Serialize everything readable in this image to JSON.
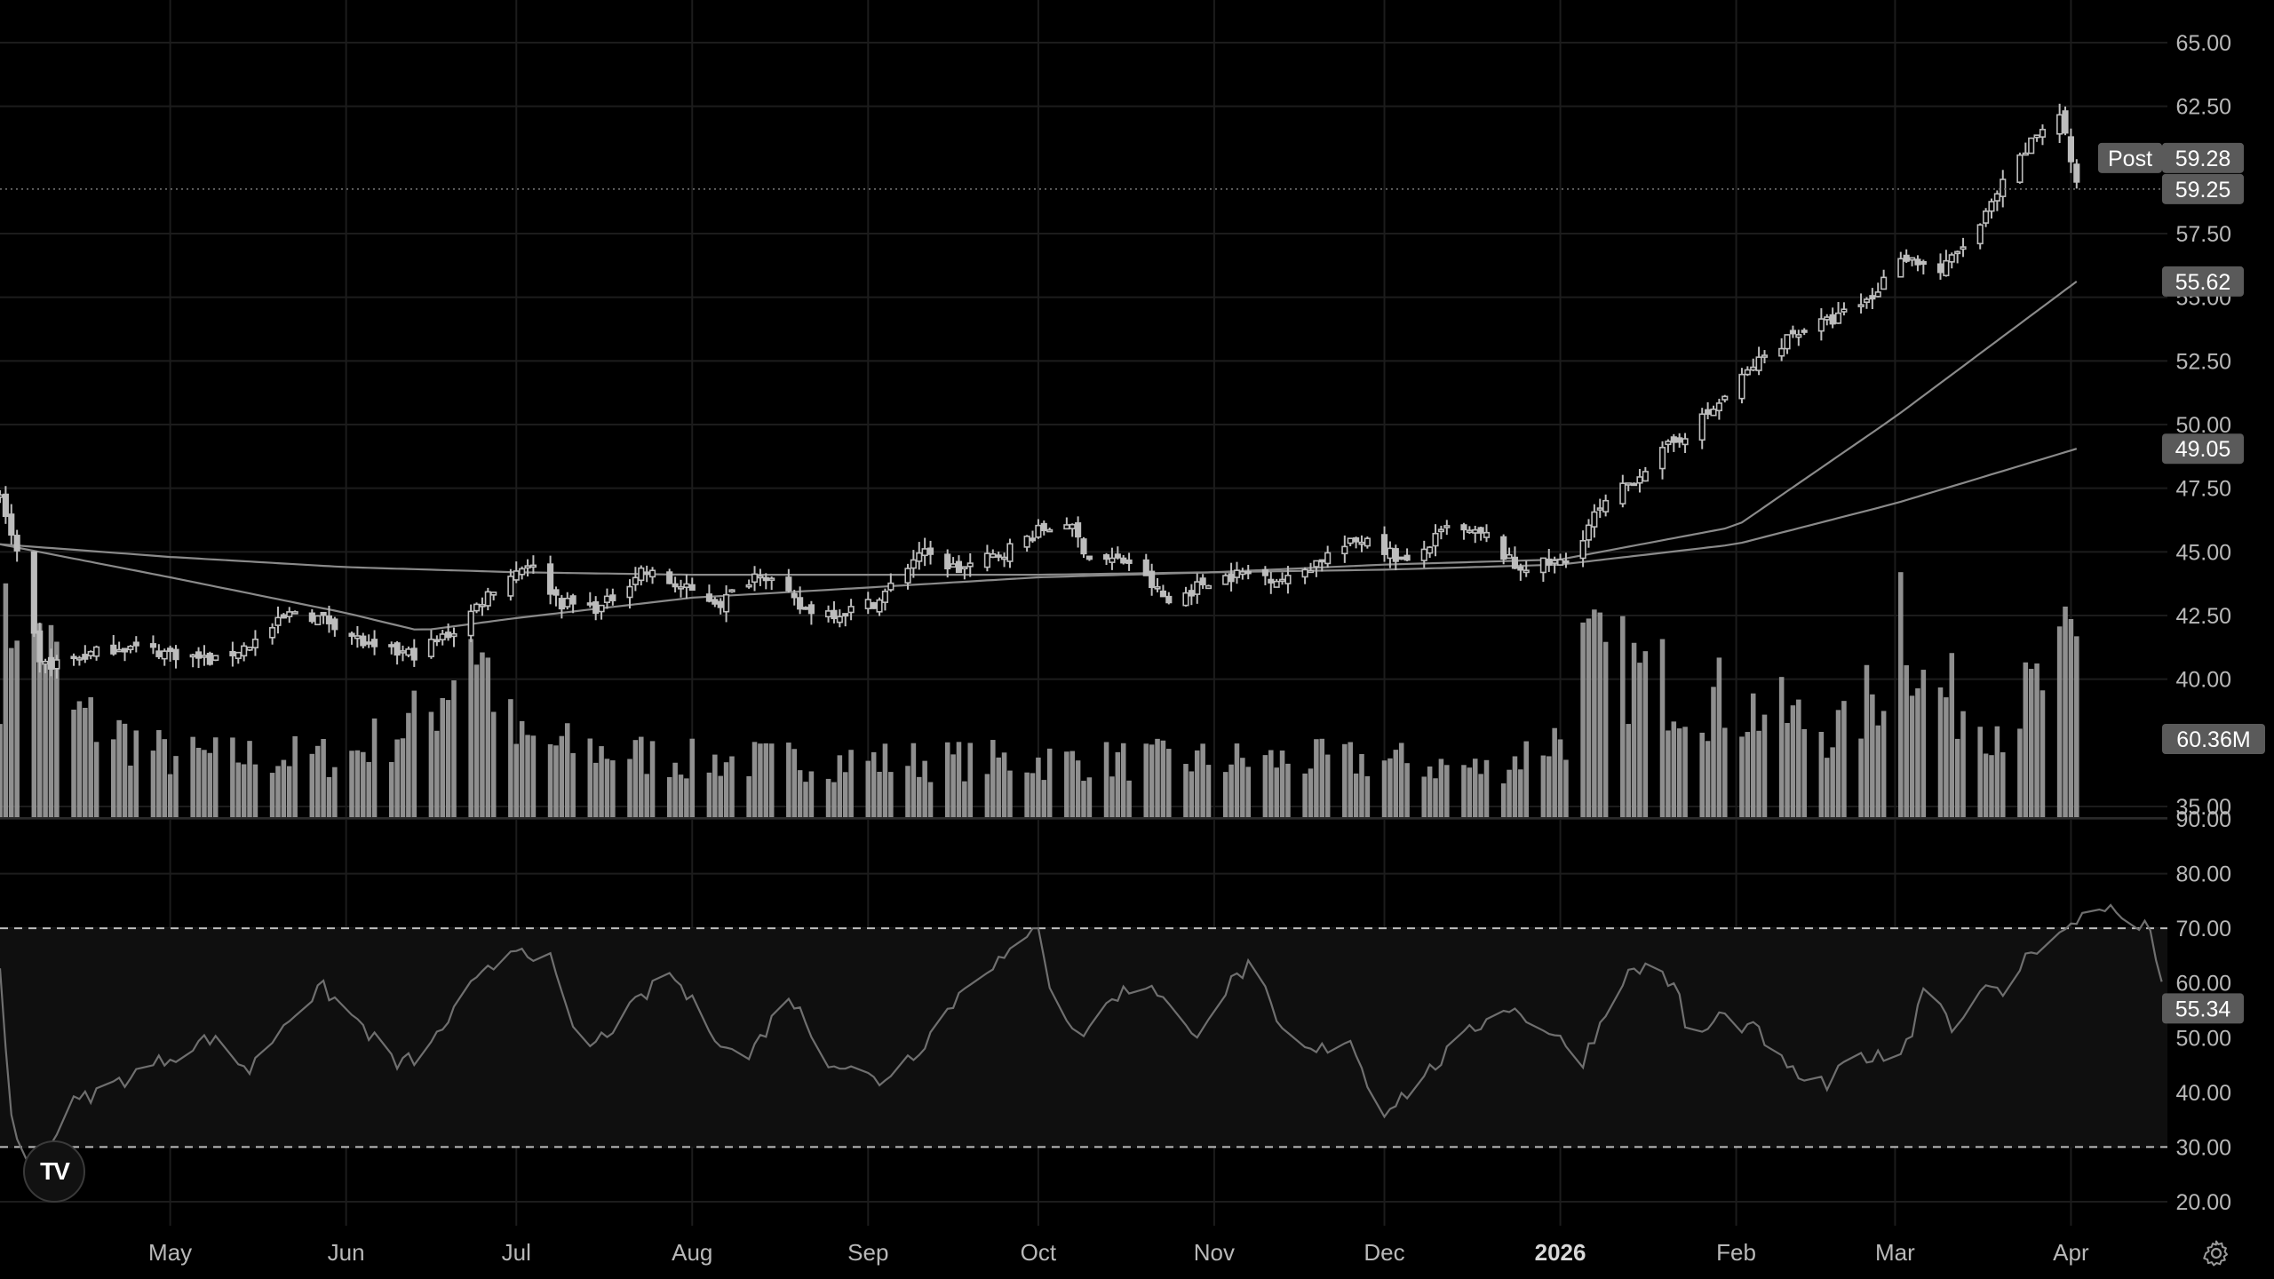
{
  "app": {
    "logo_text": "TV",
    "settings_icon": "gear-icon"
  },
  "colors": {
    "background": "#000000",
    "grid": "#1c1c1c",
    "candle": "#bdbdbd",
    "volume": "#9e9e9e",
    "ma": "#8a8a8a",
    "rsi_line": "#6f6f6f",
    "rsi_band": "#0f0f0f",
    "tag_bg": "#5a5a5a"
  },
  "chart_data": [
    {
      "type": "candlestick",
      "title": "",
      "xlabel": "",
      "ylabel": "",
      "ylim": [
        35,
        65.5
      ],
      "grid": true,
      "x_range": [
        "2025-04-01",
        "2026-04-18"
      ],
      "price_ticks": [
        "65.00",
        "62.50",
        "57.50",
        "55.00",
        "52.50",
        "50.00",
        "47.50",
        "45.00",
        "42.50",
        "40.00",
        "35.00"
      ],
      "date_ticks": [
        {
          "label": "May",
          "date": "2025-05-01",
          "bold": false
        },
        {
          "label": "Jun",
          "date": "2025-06-01",
          "bold": false
        },
        {
          "label": "Jul",
          "date": "2025-07-01",
          "bold": false
        },
        {
          "label": "Aug",
          "date": "2025-08-01",
          "bold": false
        },
        {
          "label": "Sep",
          "date": "2025-09-01",
          "bold": false
        },
        {
          "label": "Oct",
          "date": "2025-10-01",
          "bold": false
        },
        {
          "label": "Nov",
          "date": "2025-11-01",
          "bold": false
        },
        {
          "label": "Dec",
          "date": "2025-12-01",
          "bold": false
        },
        {
          "label": "2026",
          "date": "2026-01-01",
          "bold": true
        },
        {
          "label": "Feb",
          "date": "2026-02-01",
          "bold": false
        },
        {
          "label": "Mar",
          "date": "2026-03-01",
          "bold": false
        },
        {
          "label": "Apr",
          "date": "2026-04-01",
          "bold": false
        }
      ],
      "close_anchors": [
        [
          "2025-04-01",
          47.2
        ],
        [
          "2025-04-04",
          44.8
        ],
        [
          "2025-04-08",
          40.5
        ],
        [
          "2025-04-14",
          40.8
        ],
        [
          "2025-04-22",
          41.3
        ],
        [
          "2025-05-02",
          41.0
        ],
        [
          "2025-05-09",
          40.7
        ],
        [
          "2025-05-16",
          41.5
        ],
        [
          "2025-05-23",
          42.7
        ],
        [
          "2025-05-30",
          42.2
        ],
        [
          "2025-06-06",
          41.1
        ],
        [
          "2025-06-13",
          41.0
        ],
        [
          "2025-06-20",
          41.9
        ],
        [
          "2025-06-27",
          43.6
        ],
        [
          "2025-07-03",
          44.6
        ],
        [
          "2025-07-09",
          43.0
        ],
        [
          "2025-07-16",
          42.8
        ],
        [
          "2025-07-23",
          44.3
        ],
        [
          "2025-07-30",
          43.6
        ],
        [
          "2025-08-06",
          43.0
        ],
        [
          "2025-08-13",
          44.3
        ],
        [
          "2025-08-20",
          42.8
        ],
        [
          "2025-08-27",
          42.6
        ],
        [
          "2025-09-03",
          43.1
        ],
        [
          "2025-09-10",
          45.0
        ],
        [
          "2025-09-17",
          44.3
        ],
        [
          "2025-09-24",
          44.9
        ],
        [
          "2025-10-01",
          45.8
        ],
        [
          "2025-10-06",
          46.2
        ],
        [
          "2025-10-10",
          44.8
        ],
        [
          "2025-10-17",
          44.6
        ],
        [
          "2025-10-24",
          43.0
        ],
        [
          "2025-10-31",
          43.9
        ],
        [
          "2025-11-07",
          44.2
        ],
        [
          "2025-11-14",
          43.9
        ],
        [
          "2025-11-21",
          44.9
        ],
        [
          "2025-11-28",
          45.6
        ],
        [
          "2025-12-05",
          44.5
        ],
        [
          "2025-12-12",
          45.9
        ],
        [
          "2025-12-19",
          45.6
        ],
        [
          "2025-12-24",
          44.4
        ],
        [
          "2026-01-02",
          44.6
        ],
        [
          "2026-01-07",
          46.4
        ],
        [
          "2026-01-14",
          47.9
        ],
        [
          "2026-01-21",
          49.3
        ],
        [
          "2026-01-28",
          50.6
        ],
        [
          "2026-02-04",
          52.3
        ],
        [
          "2026-02-11",
          53.6
        ],
        [
          "2026-02-18",
          54.1
        ],
        [
          "2026-02-25",
          55.0
        ],
        [
          "2026-03-02",
          56.7
        ],
        [
          "2026-03-09",
          56.0
        ],
        [
          "2026-03-16",
          57.8
        ],
        [
          "2026-03-20",
          59.4
        ],
        [
          "2026-03-26",
          61.4
        ],
        [
          "2026-03-30",
          62.3
        ],
        [
          "2026-04-01",
          60.4
        ],
        [
          "2026-04-02",
          59.28
        ]
      ],
      "moving_averages": [
        {
          "period": 50,
          "last_value": 55.62,
          "anchors": [
            [
              "2025-04-01",
              45.3
            ],
            [
              "2025-05-01",
              44.0
            ],
            [
              "2025-06-01",
              42.6
            ],
            [
              "2025-06-14",
              41.9
            ],
            [
              "2025-07-01",
              42.4
            ],
            [
              "2025-08-01",
              43.2
            ],
            [
              "2025-09-01",
              43.6
            ],
            [
              "2025-10-01",
              44.0
            ],
            [
              "2025-11-01",
              44.2
            ],
            [
              "2025-12-01",
              44.5
            ],
            [
              "2026-01-01",
              44.7
            ],
            [
              "2026-02-01",
              46.0
            ],
            [
              "2026-03-01",
              50.3
            ],
            [
              "2026-04-02",
              55.62
            ]
          ]
        },
        {
          "period": 200,
          "last_value": 49.05,
          "anchors": [
            [
              "2025-04-01",
              45.3
            ],
            [
              "2025-05-01",
              44.8
            ],
            [
              "2025-06-01",
              44.4
            ],
            [
              "2025-07-01",
              44.2
            ],
            [
              "2025-08-01",
              44.1
            ],
            [
              "2025-09-01",
              44.1
            ],
            [
              "2025-10-01",
              44.1
            ],
            [
              "2025-11-01",
              44.2
            ],
            [
              "2025-12-01",
              44.3
            ],
            [
              "2026-01-01",
              44.5
            ],
            [
              "2026-02-01",
              45.3
            ],
            [
              "2026-03-01",
              46.9
            ],
            [
              "2026-04-02",
              49.05
            ]
          ]
        }
      ],
      "volume": {
        "last_label": "60.36M",
        "relative_anchors": [
          [
            "2025-04-01",
            0.8
          ],
          [
            "2025-04-04",
            1.2
          ],
          [
            "2025-04-08",
            1.0
          ],
          [
            "2025-04-14",
            0.55
          ],
          [
            "2025-05-01",
            0.32
          ],
          [
            "2025-06-01",
            0.32
          ],
          [
            "2025-06-16",
            0.55
          ],
          [
            "2025-06-23",
            1.0
          ],
          [
            "2025-07-01",
            0.4
          ],
          [
            "2025-08-01",
            0.3
          ],
          [
            "2025-09-01",
            0.3
          ],
          [
            "2025-10-01",
            0.3
          ],
          [
            "2025-11-01",
            0.3
          ],
          [
            "2025-12-01",
            0.3
          ],
          [
            "2025-12-20",
            0.25
          ],
          [
            "2026-01-02",
            0.45
          ],
          [
            "2026-01-05",
            0.85
          ],
          [
            "2026-02-01",
            0.6
          ],
          [
            "2026-02-20",
            0.45
          ],
          [
            "2026-03-01",
            0.8
          ],
          [
            "2026-03-02",
            1.2
          ],
          [
            "2026-03-06",
            0.7
          ],
          [
            "2026-03-20",
            0.5
          ],
          [
            "2026-04-01",
            0.85
          ]
        ]
      },
      "post_market": {
        "label": "Post",
        "value": "59.28"
      },
      "last_price": {
        "value": "59.25",
        "level": 59.25
      }
    },
    {
      "type": "line",
      "title": "",
      "ylabel": "",
      "ylim": [
        15,
        90
      ],
      "ticks": [
        "90.00",
        "80.00",
        "70.00",
        "60.00",
        "50.00",
        "40.00",
        "30.00",
        "20.00"
      ],
      "overbought": 70,
      "oversold": 30,
      "last_value": 55.34,
      "anchors": [
        [
          "2025-04-01",
          63
        ],
        [
          "2025-04-03",
          35
        ],
        [
          "2025-04-06",
          22
        ],
        [
          "2025-04-08",
          28
        ],
        [
          "2025-04-14",
          38
        ],
        [
          "2025-04-24",
          43
        ],
        [
          "2025-05-08",
          50
        ],
        [
          "2025-05-15",
          44
        ],
        [
          "2025-05-22",
          54
        ],
        [
          "2025-05-28",
          59
        ],
        [
          "2025-06-04",
          52
        ],
        [
          "2025-06-10",
          45
        ],
        [
          "2025-06-15",
          47
        ],
        [
          "2025-06-22",
          58
        ],
        [
          "2025-07-01",
          67
        ],
        [
          "2025-07-07",
          64
        ],
        [
          "2025-07-10",
          54
        ],
        [
          "2025-07-14",
          48
        ],
        [
          "2025-07-22",
          56
        ],
        [
          "2025-07-28",
          62
        ],
        [
          "2025-08-04",
          52
        ],
        [
          "2025-08-10",
          45
        ],
        [
          "2025-08-18",
          58
        ],
        [
          "2025-08-25",
          46
        ],
        [
          "2025-09-03",
          42
        ],
        [
          "2025-09-10",
          48
        ],
        [
          "2025-09-20",
          62
        ],
        [
          "2025-09-28",
          66
        ],
        [
          "2025-10-01",
          71
        ],
        [
          "2025-10-03",
          60
        ],
        [
          "2025-10-08",
          50
        ],
        [
          "2025-10-15",
          58
        ],
        [
          "2025-10-21",
          60
        ],
        [
          "2025-10-28",
          50
        ],
        [
          "2025-11-04",
          60
        ],
        [
          "2025-11-08",
          64
        ],
        [
          "2025-11-12",
          52
        ],
        [
          "2025-11-18",
          47
        ],
        [
          "2025-11-25",
          50
        ],
        [
          "2025-11-30",
          36
        ],
        [
          "2025-12-05",
          40
        ],
        [
          "2025-12-15",
          50
        ],
        [
          "2025-12-22",
          56
        ],
        [
          "2025-12-29",
          52
        ],
        [
          "2026-01-05",
          46
        ],
        [
          "2026-01-12",
          61
        ],
        [
          "2026-01-18",
          64
        ],
        [
          "2026-01-22",
          57
        ],
        [
          "2026-01-24",
          48
        ],
        [
          "2026-01-29",
          54
        ],
        [
          "2026-02-05",
          51
        ],
        [
          "2026-02-10",
          44
        ],
        [
          "2026-02-17",
          41
        ],
        [
          "2026-02-22",
          47
        ],
        [
          "2026-02-28",
          46
        ],
        [
          "2026-03-04",
          51
        ],
        [
          "2026-03-07",
          64
        ],
        [
          "2026-03-11",
          51
        ],
        [
          "2026-03-15",
          59
        ],
        [
          "2026-03-20",
          58
        ],
        [
          "2026-03-25",
          66
        ],
        [
          "2026-04-01",
          70
        ],
        [
          "2026-04-05",
          75
        ],
        [
          "2026-04-10",
          72
        ],
        [
          "2026-04-12",
          70
        ],
        [
          "2026-04-15",
          70
        ],
        [
          "2026-04-18",
          55.34
        ]
      ]
    }
  ]
}
